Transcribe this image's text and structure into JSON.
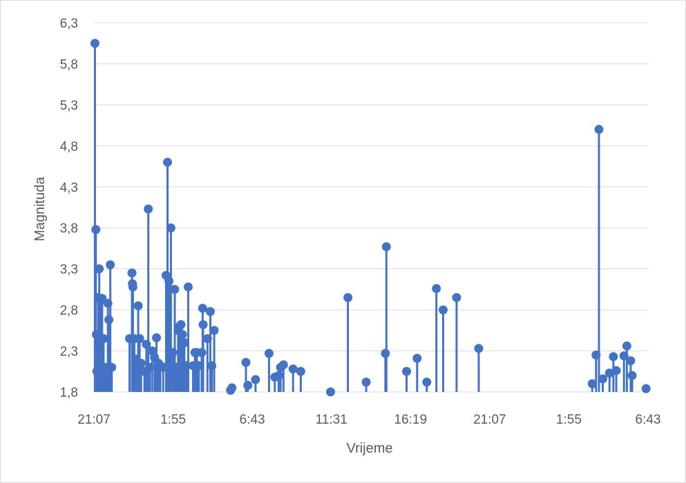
{
  "chart_data": {
    "type": "scatter",
    "style": "stem (drop lines to x-axis)",
    "xlabel": "Vrijeme",
    "ylabel": "Magnituda",
    "x_tick_labels": [
      "21:07",
      "1:55",
      "6:43",
      "11:31",
      "16:19",
      "21:07",
      "1:55",
      "6:43"
    ],
    "x_unit": "hours since first tick (21:07)",
    "y_tick_labels": [
      "1,8",
      "2,3",
      "2,8",
      "3,3",
      "3,8",
      "4,3",
      "4,8",
      "5,3",
      "5,8",
      "6,3"
    ],
    "ylim": [
      1.8,
      6.3
    ],
    "xlim": [
      0,
      57.6
    ],
    "grid": "horizontal",
    "color": "#4472c4",
    "points": [
      [
        0.1,
        6.05
      ],
      [
        0.2,
        3.78
      ],
      [
        0.25,
        2.5
      ],
      [
        0.3,
        2.05
      ],
      [
        0.45,
        2.95
      ],
      [
        0.55,
        3.3
      ],
      [
        0.7,
        2.92
      ],
      [
        0.85,
        2.94
      ],
      [
        1.0,
        2.45
      ],
      [
        1.15,
        2.1
      ],
      [
        1.3,
        2.05
      ],
      [
        1.45,
        2.88
      ],
      [
        1.55,
        2.68
      ],
      [
        1.7,
        3.35
      ],
      [
        1.85,
        2.1
      ],
      [
        3.7,
        2.45
      ],
      [
        3.95,
        3.25
      ],
      [
        4.0,
        3.12
      ],
      [
        4.05,
        3.08
      ],
      [
        4.2,
        2.45
      ],
      [
        4.4,
        2.2
      ],
      [
        4.6,
        2.85
      ],
      [
        4.75,
        2.45
      ],
      [
        4.9,
        2.15
      ],
      [
        5.25,
        2.05
      ],
      [
        5.45,
        2.38
      ],
      [
        5.65,
        4.03
      ],
      [
        5.8,
        2.1
      ],
      [
        6.05,
        2.3
      ],
      [
        6.3,
        2.22
      ],
      [
        6.5,
        2.46
      ],
      [
        6.7,
        2.15
      ],
      [
        6.9,
        2.12
      ],
      [
        7.2,
        2.1
      ],
      [
        7.5,
        3.22
      ],
      [
        7.65,
        4.6
      ],
      [
        7.8,
        3.15
      ],
      [
        8.0,
        3.8
      ],
      [
        8.2,
        2.28
      ],
      [
        8.4,
        3.05
      ],
      [
        8.6,
        2.1
      ],
      [
        8.75,
        2.55
      ],
      [
        8.9,
        2.6
      ],
      [
        9.05,
        2.62
      ],
      [
        9.2,
        2.5
      ],
      [
        9.4,
        2.4
      ],
      [
        9.6,
        2.12
      ],
      [
        9.8,
        3.08
      ],
      [
        10.3,
        2.12
      ],
      [
        10.5,
        2.28
      ],
      [
        10.7,
        2.28
      ],
      [
        10.9,
        2.12
      ],
      [
        11.2,
        2.28
      ],
      [
        11.3,
        2.82
      ],
      [
        11.35,
        2.62
      ],
      [
        11.8,
        2.45
      ],
      [
        12.1,
        2.78
      ],
      [
        12.25,
        2.12
      ],
      [
        12.5,
        2.55
      ],
      [
        14.2,
        1.82
      ],
      [
        14.35,
        1.85
      ],
      [
        15.8,
        2.16
      ],
      [
        16.0,
        1.88
      ],
      [
        16.8,
        1.95
      ],
      [
        18.2,
        2.27
      ],
      [
        18.8,
        1.98
      ],
      [
        19.2,
        2.0
      ],
      [
        19.4,
        2.1
      ],
      [
        19.7,
        2.13
      ],
      [
        20.7,
        2.08
      ],
      [
        21.5,
        2.05
      ],
      [
        24.6,
        1.8
      ],
      [
        26.4,
        2.95
      ],
      [
        28.3,
        1.92
      ],
      [
        30.3,
        2.27
      ],
      [
        30.4,
        3.57
      ],
      [
        32.5,
        2.05
      ],
      [
        33.6,
        2.21
      ],
      [
        34.6,
        1.92
      ],
      [
        35.6,
        3.06
      ],
      [
        36.3,
        2.8
      ],
      [
        37.7,
        2.95
      ],
      [
        40.0,
        2.33
      ],
      [
        51.8,
        1.9
      ],
      [
        52.2,
        2.25
      ],
      [
        52.5,
        5.0
      ],
      [
        52.9,
        1.96
      ],
      [
        53.6,
        2.03
      ],
      [
        54.0,
        2.23
      ],
      [
        54.3,
        2.06
      ],
      [
        55.1,
        2.24
      ],
      [
        55.4,
        2.36
      ],
      [
        55.8,
        2.18
      ],
      [
        55.95,
        2.0
      ],
      [
        57.4,
        1.84
      ]
    ]
  }
}
